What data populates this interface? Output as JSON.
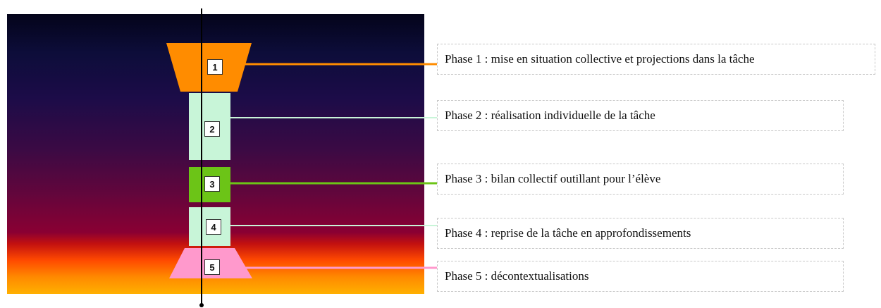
{
  "colors": {
    "phase1": "#ff8c00",
    "phase2": "#c8f5d8",
    "phase3": "#6cc417",
    "phase4": "#c8f5d8",
    "phase5": "#ff99cc",
    "axis": "#000000"
  },
  "phases": [
    {
      "number": "1",
      "label": "Phase 1 : mise en situation collective et projections dans la tâche"
    },
    {
      "number": "2",
      "label": "Phase 2 : réalisation individuelle de la tâche"
    },
    {
      "number": "3",
      "label": "Phase 3 : bilan collectif outillant pour l’élève"
    },
    {
      "number": "4",
      "label": "Phase 4 : reprise de la tâche en approfondissements"
    },
    {
      "number": "5",
      "label": "Phase 5 : décontextualisations"
    }
  ]
}
